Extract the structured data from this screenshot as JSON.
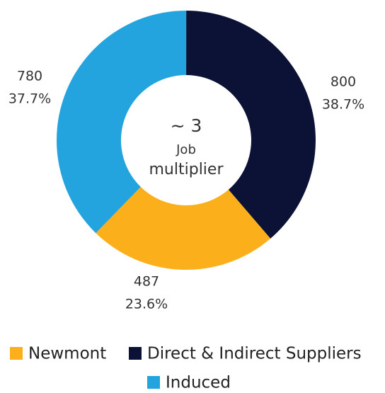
{
  "chart_data": {
    "type": "donut",
    "categories": [
      "Newmont",
      "Direct & Indirect Suppliers",
      "Induced"
    ],
    "values": [
      487,
      800,
      780
    ],
    "percents": [
      23.6,
      38.7,
      37.7
    ],
    "percent_labels": [
      "23.6%",
      "38.7%",
      "37.7%"
    ],
    "colors": [
      "#fbb01b",
      "#0b1236",
      "#24a4df"
    ],
    "center_value": "~ 3",
    "center_label_lines": [
      "Job",
      "multiplier"
    ],
    "legend": "bottom"
  }
}
